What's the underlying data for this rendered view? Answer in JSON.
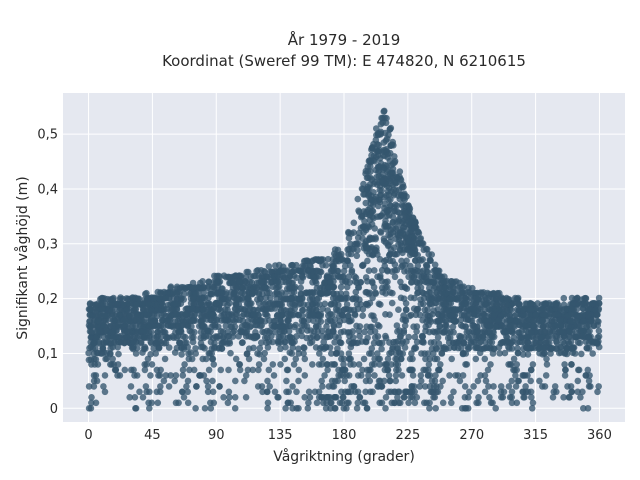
{
  "chart_data": {
    "type": "scatter",
    "title_line1": "År 1979 - 2019",
    "title_line2": "Koordinat (Sweref 99 TM): E 474820, N 6210615",
    "xlabel": "Vågriktning (grader)",
    "ylabel": "Signifikant våghöjd (m)",
    "xlim": [
      -18,
      378
    ],
    "ylim": [
      -0.025,
      0.575
    ],
    "xticks": [
      0,
      45,
      90,
      135,
      180,
      225,
      270,
      315,
      360
    ],
    "xtick_labels": [
      "0",
      "45",
      "90",
      "135",
      "180",
      "225",
      "270",
      "315",
      "360"
    ],
    "yticks": [
      0,
      0.1,
      0.2,
      0.3,
      0.4,
      0.5
    ],
    "ytick_labels": [
      "0",
      "0,1",
      "0,2",
      "0,3",
      "0,4",
      "0,5"
    ],
    "grid": true,
    "legend": false,
    "marker_color": "#34566e",
    "plot_background": "#e5e8f0",
    "envelope": {
      "x": [
        0,
        10,
        20,
        45,
        90,
        135,
        170,
        180,
        190,
        200,
        205,
        210,
        215,
        220,
        230,
        240,
        250,
        270,
        300,
        315,
        345,
        360
      ],
      "upper": [
        0.19,
        0.2,
        0.2,
        0.21,
        0.24,
        0.26,
        0.28,
        0.3,
        0.38,
        0.48,
        0.53,
        0.55,
        0.5,
        0.42,
        0.34,
        0.29,
        0.24,
        0.22,
        0.2,
        0.19,
        0.2,
        0.2
      ],
      "lower": [
        0.09,
        0.09,
        0.1,
        0.1,
        0.1,
        0.1,
        0.1,
        0.1,
        0.1,
        0.1,
        0.1,
        0.1,
        0.1,
        0.1,
        0.1,
        0.1,
        0.1,
        0.1,
        0.1,
        0.1,
        0.1,
        0.1
      ],
      "sparse_min": 0.0
    }
  }
}
